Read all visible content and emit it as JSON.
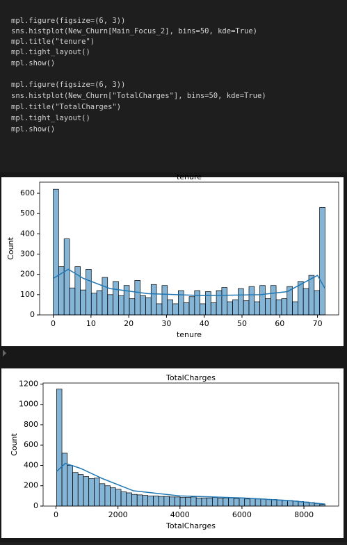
{
  "code_lines": [
    "mpl.figure(figsize=(6, 3))",
    "sns.histplot(New_Churn[Main_Focus_2], bins=50, kde=True)",
    "mpl.title(\"tenure\")",
    "mpl.tight_layout()",
    "mpl.show()",
    "mpl.figure(figsize=(6, 3))",
    "sns.histplot(New_Churn[\"TotalCharges\"], bins=50, kde=True)",
    "mpl.title(\"TotalCharges\")",
    "mpl.tight_layout()",
    "mpl.show()"
  ],
  "chart_data": [
    {
      "type": "histogram",
      "title": "tenure",
      "xlabel": "tenure",
      "ylabel": "Count",
      "color": "#1f77b4",
      "bins": [
        0,
        1.44,
        2.88,
        4.32,
        5.76,
        7.2,
        8.64,
        10.08,
        11.52,
        12.96,
        14.4,
        15.84,
        17.28,
        18.72,
        20.16,
        21.6,
        23.04,
        24.48,
        25.92,
        27.36,
        28.8,
        30.24,
        31.68,
        33.12,
        34.56,
        36,
        37.44,
        38.88,
        40.32,
        41.76,
        43.2,
        44.64,
        46.08,
        47.52,
        48.96,
        50.4,
        51.84,
        53.28,
        54.72,
        56.16,
        57.6,
        59.04,
        60.48,
        61.92,
        63.36,
        64.8,
        66.24,
        67.68,
        69.12,
        70.56,
        72
      ],
      "values": [
        620,
        238,
        375,
        133,
        238,
        123,
        225,
        107,
        120,
        185,
        100,
        165,
        95,
        145,
        80,
        170,
        95,
        85,
        150,
        55,
        145,
        75,
        55,
        120,
        60,
        90,
        120,
        55,
        115,
        60,
        120,
        135,
        65,
        75,
        130,
        70,
        140,
        65,
        145,
        80,
        145,
        75,
        80,
        140,
        65,
        165,
        130,
        195,
        120,
        530
      ],
      "kde": {
        "x": [
          0,
          4,
          8,
          15,
          25,
          40,
          55,
          62,
          68,
          70,
          72
        ],
        "values": [
          180,
          225,
          180,
          130,
          105,
          95,
          100,
          115,
          175,
          195,
          130
        ]
      },
      "xlim": [
        -3.6,
        75.6
      ],
      "xticks": [
        0,
        10,
        20,
        30,
        40,
        50,
        60,
        70
      ],
      "ylim": [
        0,
        655
      ],
      "yticks": [
        0,
        100,
        200,
        300,
        400,
        500,
        600
      ]
    },
    {
      "type": "histogram",
      "title": "TotalCharges",
      "xlabel": "TotalCharges",
      "ylabel": "Count",
      "color": "#1f77b4",
      "bins": [
        18.8,
        192.1,
        365.4,
        538.7,
        712.0,
        885.3,
        1058.6,
        1231.9,
        1405.2,
        1578.5,
        1751.8,
        1925.1,
        2098.4,
        2271.7,
        2445.0,
        2618.3,
        2791.6,
        2964.9,
        3138.2,
        3311.5,
        3484.8,
        3658.1,
        3831.4,
        4004.7,
        4178.0,
        4351.3,
        4524.6,
        4697.9,
        4871.2,
        5044.5,
        5217.8,
        5391.1,
        5564.4,
        5737.7,
        5911.0,
        6084.3,
        6257.6,
        6430.9,
        6604.2,
        6777.5,
        6950.8,
        7124.1,
        7297.4,
        7470.7,
        7644.0,
        7817.3,
        7990.6,
        8163.9,
        8337.2,
        8510.5,
        8683.8
      ],
      "values": [
        1150,
        520,
        400,
        330,
        310,
        290,
        270,
        275,
        220,
        200,
        180,
        165,
        140,
        130,
        115,
        110,
        105,
        100,
        100,
        95,
        95,
        90,
        90,
        85,
        85,
        90,
        80,
        80,
        80,
        85,
        75,
        80,
        80,
        75,
        80,
        70,
        75,
        70,
        70,
        65,
        65,
        60,
        55,
        55,
        50,
        45,
        40,
        35,
        25,
        15
      ],
      "kde": {
        "x": [
          18.8,
          300,
          800,
          1500,
          2500,
          4000,
          6000,
          7500,
          8683.8
        ],
        "values": [
          340,
          420,
          370,
          270,
          150,
          100,
          80,
          55,
          20
        ]
      },
      "xlim": [
        -415,
        9120
      ],
      "xticks": [
        0,
        2000,
        4000,
        6000,
        8000
      ],
      "ylim": [
        0,
        1210
      ],
      "yticks": [
        0,
        200,
        400,
        600,
        800,
        1000,
        1200
      ]
    }
  ]
}
